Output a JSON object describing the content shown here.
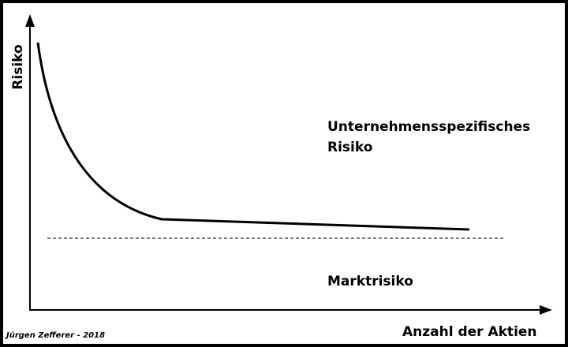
{
  "axes": {
    "y_label": "Risiko",
    "x_label": "Anzahl der Aktien"
  },
  "regions": {
    "upper": {
      "lines": [
        "Unternehmensspezifisches",
        "Risiko"
      ]
    },
    "lower": {
      "label": "Marktrisiko"
    }
  },
  "footer": {
    "credit": "Jürgen Zefferer - 2018"
  }
}
